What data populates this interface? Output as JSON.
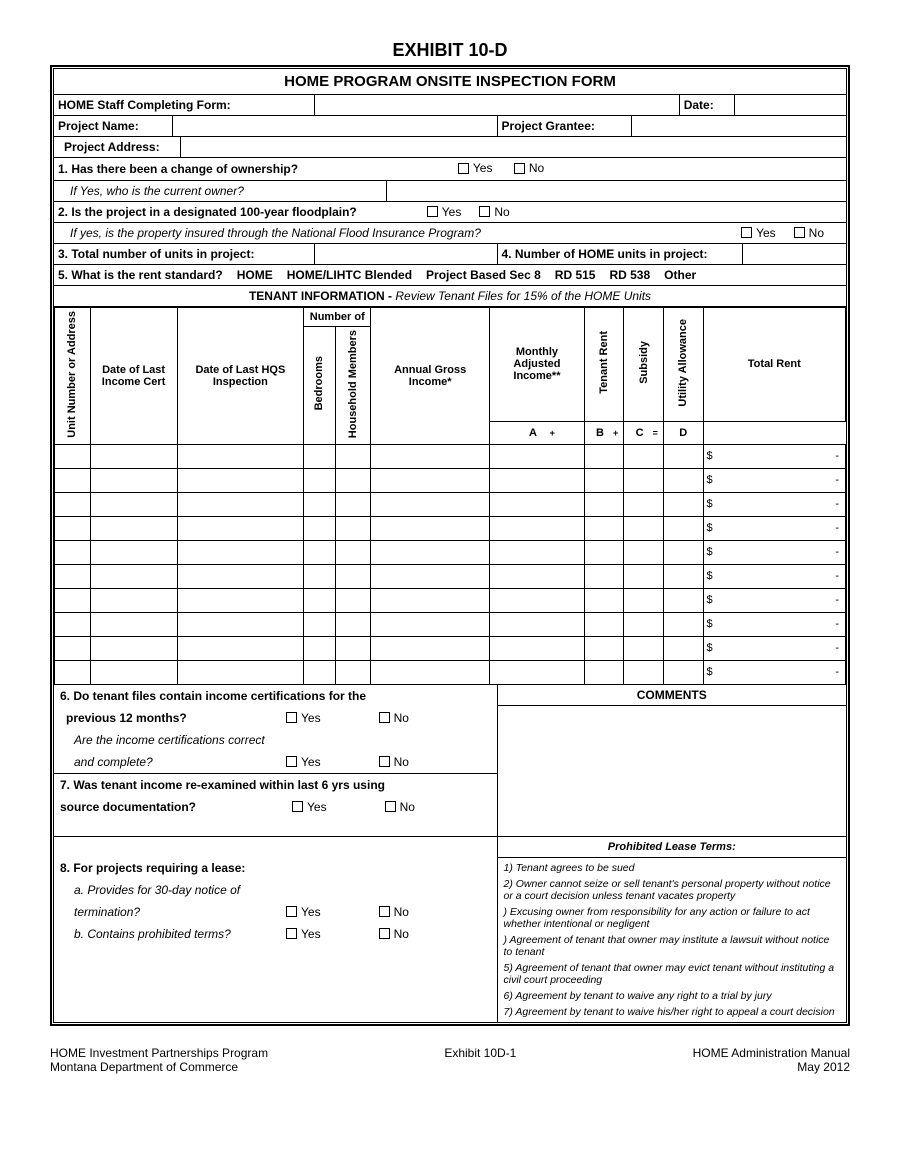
{
  "document": {
    "exhibit_title": "EXHIBIT 10-D",
    "form_title": "HOME PROGRAM ONSITE INSPECTION FORM",
    "header": {
      "staff_label": "HOME Staff Completing Form:",
      "date_label": "Date:",
      "project_name_label": "Project Name:",
      "project_grantee_label": "Project Grantee:",
      "project_address_label": "Project Address:"
    },
    "q1": {
      "text": "1. Has there been a change of ownership?",
      "yes": "Yes",
      "no": "No",
      "sub": "If Yes, who is the current owner?"
    },
    "q2": {
      "text": "2. Is the project in a designated 100-year floodplain?",
      "yes": "Yes",
      "no": "No",
      "sub": "If yes, is the property insured through the National Flood Insurance Program?",
      "sub_yes": "Yes",
      "sub_no": "No"
    },
    "q3": "3. Total number of units in project:",
    "q4": "4. Number of HOME units in project:",
    "q5": {
      "text": "5. What is the rent standard?",
      "opts": [
        "HOME",
        "HOME/LIHTC Blended",
        "Project Based Sec 8",
        "RD 515",
        "RD 538",
        "Other"
      ]
    },
    "tenant_info_header": {
      "prefix": "TENANT INFORMATION - ",
      "rest": "Review Tenant Files for 15% of the HOME Units"
    },
    "cols": {
      "unit": "Unit Number or Address",
      "date_cert": "Date of Last Income Cert",
      "date_hqs": "Date of Last HQS Inspection",
      "numof": "Number of",
      "bedrooms": "Bedrooms",
      "household": "Household Members",
      "agi": "Annual Gross Income*",
      "mai": "Monthly Adjusted Income**",
      "tenant_rent": "Tenant Rent",
      "subsidy": "Subsidy",
      "util": "Utility Allowance",
      "total_rent": "Total Rent",
      "A": "A",
      "B": "B",
      "C": "C",
      "D": "D",
      "plus": "+",
      "eq": "="
    },
    "data_rows": 10,
    "dollar": "$",
    "dash": "-",
    "q6": {
      "line1": "6. Do tenant files contain income certifications for the",
      "line2": "previous 12 months?",
      "sub1": "Are the income certifications correct",
      "sub2": "and complete?",
      "yes": "Yes",
      "no": "No",
      "comments": "COMMENTS"
    },
    "q7": {
      "line1": "7. Was tenant income re-examined within last 6 yrs using",
      "line2": "source documentation?",
      "yes": "Yes",
      "no": "No"
    },
    "q8": {
      "line1": "8. For projects requiring a lease:",
      "a1": "a. Provides for 30-day notice of",
      "a2": "termination?",
      "b": "b. Contains prohibited terms?",
      "yes": "Yes",
      "no": "No"
    },
    "lease": {
      "header": "Prohibited Lease Terms:",
      "items": [
        "1)  Tenant agrees to be sued",
        "2)  Owner cannot seize or sell tenant's personal property without notice or a court decision unless tenant vacates property",
        ")  Excusing owner from responsibility for any action or failure to act whether intentional or negligent",
        ")  Agreement of tenant that owner may institute a lawsuit without notice to tenant",
        "5) Agreement of tenant that owner may evict tenant without instituting a civil court proceeding",
        "6) Agreement by tenant to waive any right to a trial by jury",
        "7) Agreement by tenant to waive his/her right to appeal a court decision"
      ]
    },
    "footer": {
      "left1": "HOME Investment Partnerships Program",
      "left2": "Montana Department of Commerce",
      "center": "Exhibit 10D-1",
      "right1": "HOME Administration Manual",
      "right2": "May 2012"
    }
  }
}
